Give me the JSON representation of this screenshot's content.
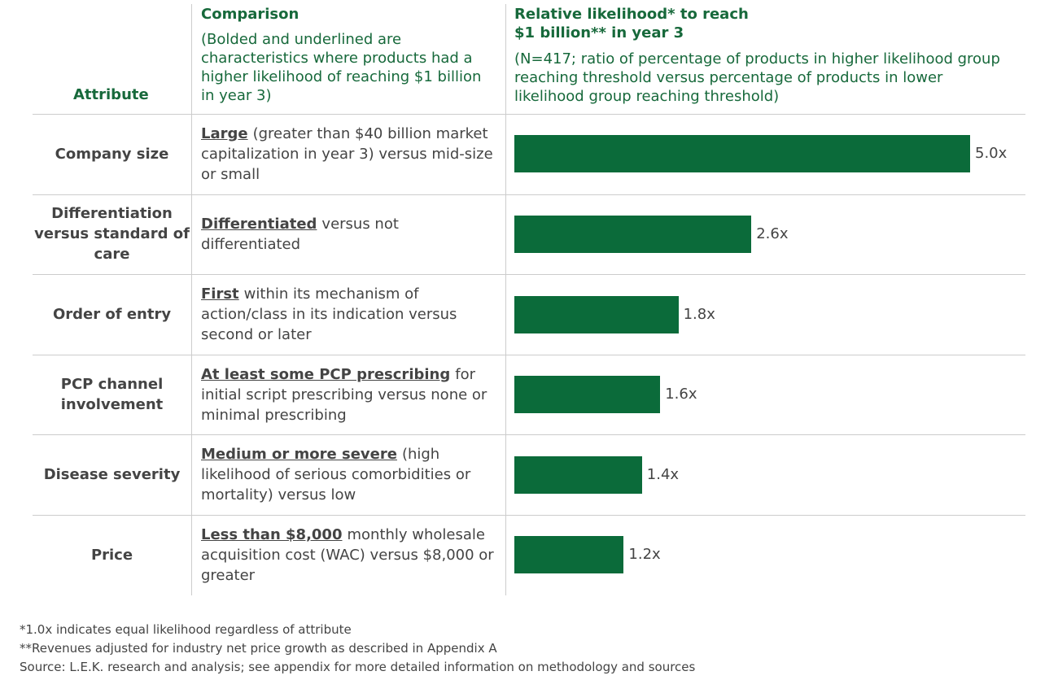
{
  "chart_data": {
    "type": "bar",
    "headers": {
      "attribute": "Attribute",
      "comparison": "Comparison",
      "comparison_note": "(Bolded and underlined are characteristics where products had a higher likelihood of reaching $1 billion in year 3)",
      "likelihood": "Relative likelihood* to reach $1 billion** in year 3",
      "likelihood_note": "(N=417; ratio of percentage of products in higher likelihood group reaching threshold versus percentage of products in lower likelihood group reaching threshold)"
    },
    "categories": [
      "Company size",
      "Differentiation versus standard of care",
      "Order of entry",
      "PCP channel involvement",
      "Disease severity",
      "Price"
    ],
    "comparisons": [
      {
        "emphasis": "Large",
        "text": "(greater than $40 billion market capitalization in year 3) versus mid-size or small"
      },
      {
        "emphasis": "Differentiated",
        "text": "versus not differentiated"
      },
      {
        "emphasis": "First",
        "text": "within its mechanism of action/class in its indication versus second or later"
      },
      {
        "emphasis": "At least some PCP prescribing",
        "text": "for initial script prescribing versus none or minimal prescribing"
      },
      {
        "emphasis": "Medium or more severe",
        "text": "(high likelihood of serious comorbidities or mortality) versus low"
      },
      {
        "emphasis": "Less than $8,000",
        "text": "monthly wholesale acquisition cost (WAC) versus $8,000 or greater"
      }
    ],
    "values": [
      5.0,
      2.6,
      1.8,
      1.6,
      1.4,
      1.2
    ],
    "value_labels": [
      "5.0x",
      "2.6x",
      "1.8x",
      "1.6x",
      "1.4x",
      "1.2x"
    ],
    "color": "#0b6b3a",
    "footnotes": [
      "*1.0x indicates equal likelihood regardless of attribute",
      "**Revenues adjusted for industry net price growth as described in Appendix A",
      "Source: L.E.K. research and analysis; see appendix for more detailed information on methodology and sources"
    ]
  }
}
